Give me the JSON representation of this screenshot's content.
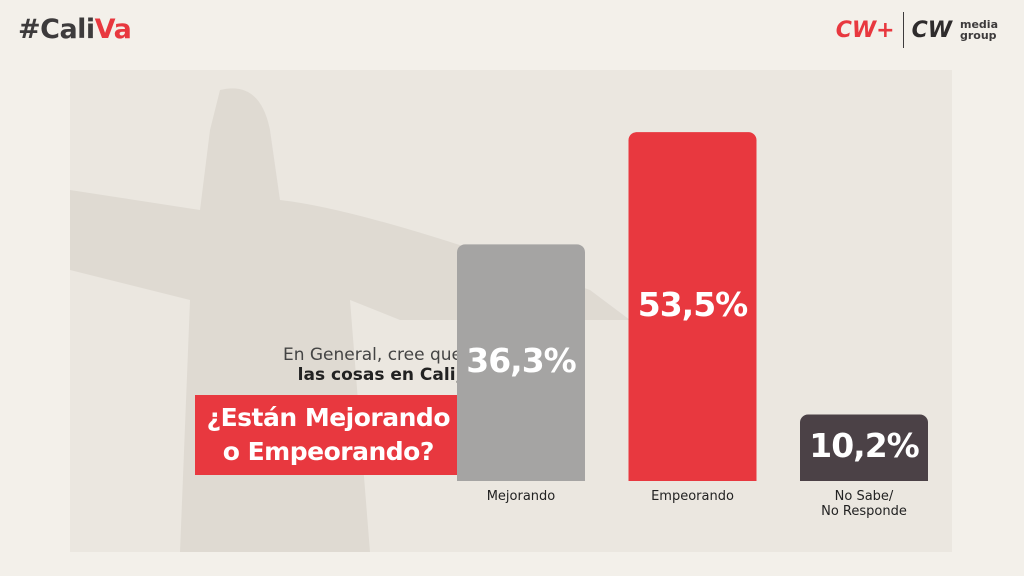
{
  "header": {
    "hashtag_main": "#Cali",
    "hashtag_accent": "Va",
    "logo_1": "CW+",
    "logo_2": "CW",
    "logo_2_top": "media",
    "logo_2_bottom": "group"
  },
  "question": {
    "line_1": "En General, cree que",
    "line_2": "las cosas en Cali,",
    "highlight_1": "¿Están Mejorando",
    "highlight_2": "o Empeorando?"
  },
  "chart_data": {
    "type": "bar",
    "categories": [
      "Mejorando",
      "Empeorando",
      "No Sabe/\nNo Responde"
    ],
    "values": [
      36.3,
      53.5,
      10.2
    ],
    "value_labels": [
      "36,3%",
      "53,5%",
      "10,2%"
    ],
    "colors": [
      "#a5a4a3",
      "#e8383f",
      "#4b4146"
    ]
  }
}
